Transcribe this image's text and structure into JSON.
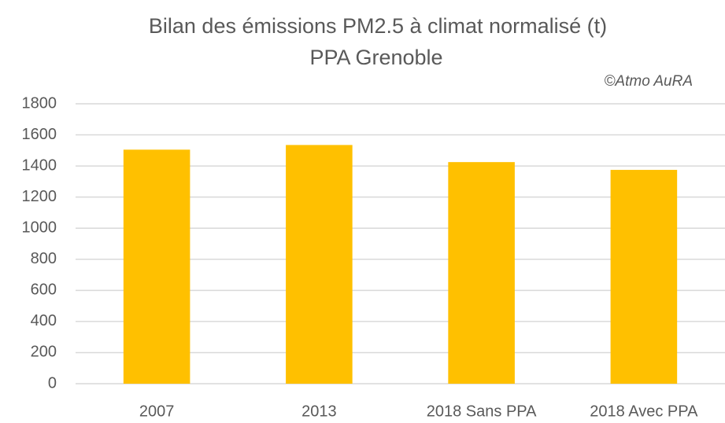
{
  "chart_data": {
    "type": "bar",
    "title": "Bilan des émissions PM2.5  à climat normalisé (t)",
    "subtitle": "PPA Grenoble",
    "annotation": "©Atmo AuRA",
    "categories": [
      "2007",
      "2013",
      "2018 Sans PPA",
      "2018 Avec PPA"
    ],
    "values": [
      1505,
      1535,
      1425,
      1375
    ],
    "color": "#ffc000",
    "ylim": [
      0,
      1800
    ],
    "yticks": [
      0,
      200,
      400,
      600,
      800,
      1000,
      1200,
      1400,
      1600,
      1800
    ],
    "grid": true
  }
}
